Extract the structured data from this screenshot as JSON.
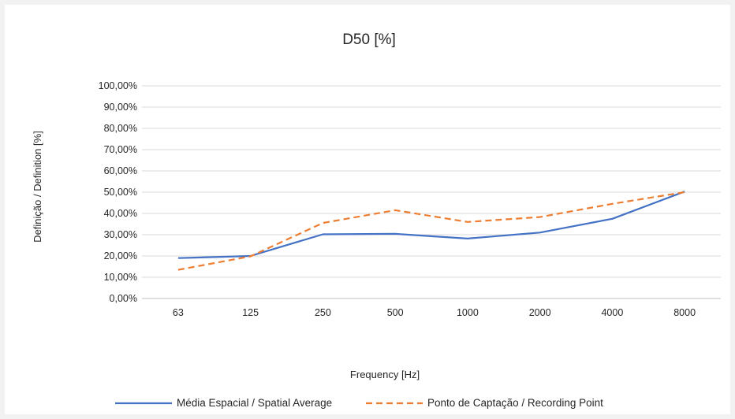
{
  "chart_data": {
    "type": "line",
    "title": "D50 [%]",
    "xlabel": "Frequency [Hz]",
    "ylabel": "Definição / Definition [%]",
    "categories": [
      "63",
      "125",
      "250",
      "500",
      "1000",
      "2000",
      "4000",
      "8000"
    ],
    "yticks": [
      "0,00%",
      "10,00%",
      "20,00%",
      "30,00%",
      "40,00%",
      "50,00%",
      "60,00%",
      "70,00%",
      "80,00%",
      "90,00%",
      "100,00%"
    ],
    "ylim": [
      0,
      100
    ],
    "grid": true,
    "legend_position": "bottom",
    "series": [
      {
        "name": "Média Espacial / Spatial Average",
        "color": "#4472c4",
        "dash": "solid",
        "values": [
          19.0,
          20.0,
          30.2,
          30.4,
          28.2,
          31.0,
          37.5,
          50.3
        ]
      },
      {
        "name": "Ponto de Captação / Recording Point",
        "color": "#ed7d31",
        "dash": "dashed",
        "values": [
          13.5,
          19.8,
          35.5,
          41.5,
          36.0,
          38.3,
          44.5,
          50.0
        ]
      }
    ]
  }
}
